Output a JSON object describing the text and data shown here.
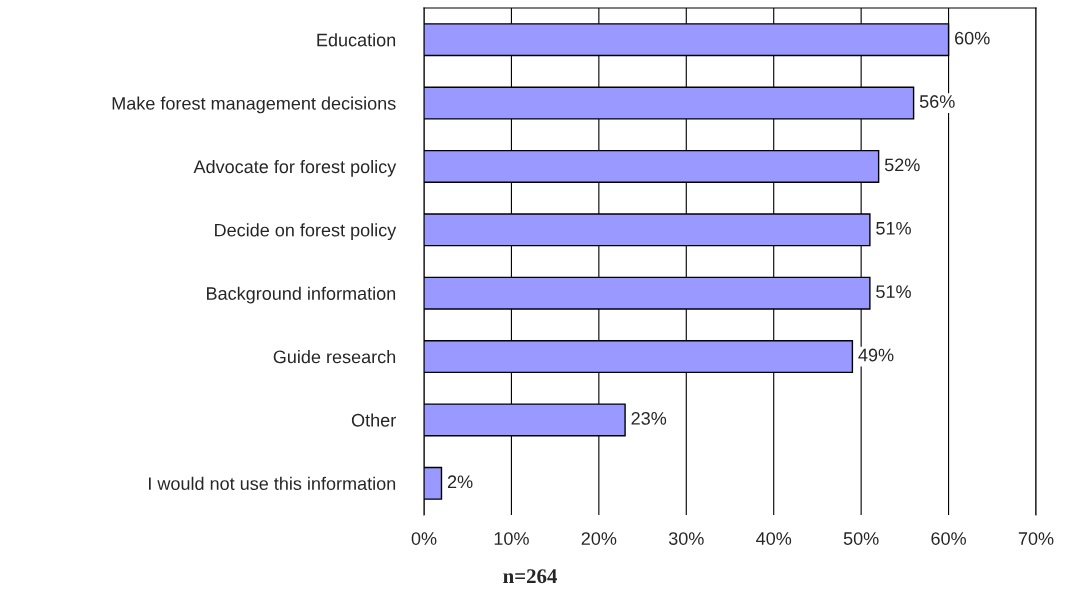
{
  "chart_data": {
    "type": "bar",
    "orientation": "horizontal",
    "categories": [
      "Education",
      "Make forest management decisions",
      "Advocate for forest policy",
      "Decide on forest policy",
      "Background information",
      "Guide research",
      "Other",
      "I would not use this information"
    ],
    "values": [
      60,
      56,
      52,
      51,
      51,
      49,
      23,
      2
    ],
    "color": "#9999ff",
    "value_labels": [
      "60%",
      "56%",
      "52%",
      "51%",
      "51%",
      "49%",
      "23%",
      "2%"
    ],
    "xlim": [
      0,
      70
    ],
    "xticks": [
      {
        "value": 0,
        "label": "0%"
      },
      {
        "value": 10,
        "label": "10%"
      },
      {
        "value": 20,
        "label": "20%"
      },
      {
        "value": 30,
        "label": "30%"
      },
      {
        "value": 40,
        "label": "40%"
      },
      {
        "value": 50,
        "label": "50%"
      },
      {
        "value": 60,
        "label": "60%"
      },
      {
        "value": 70,
        "label": "70%"
      }
    ],
    "grid": "x",
    "annotations": [
      "n=264"
    ]
  }
}
